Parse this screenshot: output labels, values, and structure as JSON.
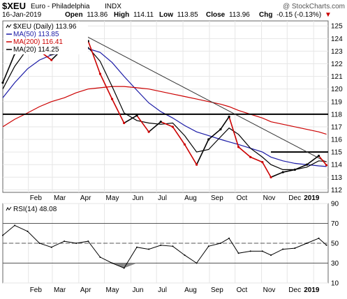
{
  "header": {
    "symbol": "$XEU",
    "name": "Euro - Philadelphia",
    "exchange": "INDX",
    "watermark": "@ StockCharts.com",
    "date": "16-Jan-2019",
    "quote": {
      "open_label": "Open",
      "open": "113.86",
      "high_label": "High",
      "high": "114.11",
      "low_label": "Low",
      "low": "113.85",
      "close_label": "Close",
      "close": "113.96",
      "chg_label": "Chg",
      "chg": "-0.15 (-0.13%)",
      "chg_arrow": "▼"
    }
  },
  "colors": {
    "price_up": "#000000",
    "price_down": "#cc0000",
    "ma50": "#1a1aa6",
    "ma200": "#cc0000",
    "ma20": "#000000",
    "rsi_line": "#000000",
    "grid": "#e6e6e6",
    "frame": "#666666"
  },
  "chart_data": [
    {
      "type": "line",
      "title": "$XEU (Daily) 113.96",
      "x": [
        "2018-01-02",
        "2018-01-16",
        "2018-01-31",
        "2018-02-14",
        "2018-02-28",
        "2018-03-15",
        "2018-03-29",
        "2018-04-12",
        "2018-04-26",
        "2018-05-10",
        "2018-05-24",
        "2018-06-08",
        "2018-06-22",
        "2018-07-06",
        "2018-07-20",
        "2018-08-03",
        "2018-08-17",
        "2018-08-31",
        "2018-09-14",
        "2018-09-24",
        "2018-10-05",
        "2018-10-19",
        "2018-11-02",
        "2018-11-12",
        "2018-11-26",
        "2018-12-10",
        "2018-12-24",
        "2019-01-07",
        "2019-01-16"
      ],
      "series": [
        {
          "name": "$XEU (Daily) 113.96",
          "values": [
            120.5,
            122.8,
            123.8,
            123.0,
            122.3,
            123.3,
            123.2,
            123.8,
            121.2,
            119.2,
            117.3,
            117.9,
            116.6,
            117.4,
            117.0,
            115.6,
            114.0,
            116.0,
            116.8,
            117.8,
            115.4,
            114.6,
            114.2,
            113.0,
            113.4,
            113.6,
            114.0,
            114.7,
            113.96
          ]
        },
        {
          "name": "MA(50) 113.85",
          "values": [
            119.3,
            120.5,
            121.6,
            122.3,
            122.7,
            122.9,
            123.1,
            123.2,
            122.9,
            122.1,
            121.0,
            119.9,
            118.9,
            118.2,
            117.7,
            117.1,
            116.6,
            116.3,
            116.0,
            115.8,
            115.6,
            115.3,
            115.0,
            114.6,
            114.3,
            114.1,
            114.0,
            113.9,
            113.85
          ]
        },
        {
          "name": "MA(200) 116.41",
          "values": [
            117.0,
            117.6,
            118.1,
            118.6,
            119.0,
            119.3,
            119.7,
            120.0,
            120.1,
            120.2,
            120.2,
            120.1,
            120.0,
            119.8,
            119.6,
            119.4,
            119.2,
            119.0,
            118.8,
            118.6,
            118.3,
            118.0,
            117.7,
            117.4,
            117.2,
            117.0,
            116.8,
            116.6,
            116.41
          ]
        },
        {
          "name": "MA(20) 114.25",
          "values": [
            120.0,
            121.8,
            123.2,
            123.0,
            122.7,
            123.0,
            123.3,
            123.3,
            122.2,
            120.2,
            118.1,
            117.5,
            117.3,
            117.2,
            117.3,
            116.3,
            115.0,
            115.2,
            116.2,
            116.9,
            116.4,
            115.3,
            114.6,
            114.0,
            113.6,
            113.6,
            113.8,
            114.3,
            114.25
          ]
        }
      ],
      "xlabel": "",
      "ylabel": "",
      "ylim": [
        111.8,
        125.4
      ],
      "yticks": [
        112,
        113,
        114,
        115,
        116,
        117,
        118,
        119,
        120,
        121,
        122,
        123,
        124,
        125
      ],
      "month_ticks": [
        "Feb",
        "Mar",
        "Apr",
        "May",
        "Jun",
        "Jul",
        "Aug",
        "Sep",
        "Oct",
        "Nov",
        "Dec",
        "2019"
      ],
      "horizontal_lines": [
        118.0,
        115.0
      ],
      "trendline": {
        "from": {
          "x": "2018-03-29",
          "y": 124.6
        },
        "to": {
          "x": "2019-01-16",
          "y": 114.2
        }
      },
      "grid": true,
      "legend": "top-left"
    },
    {
      "type": "line",
      "title": "RSI(14) 48.08",
      "x": [
        "2018-01-02",
        "2018-01-16",
        "2018-01-31",
        "2018-02-14",
        "2018-02-28",
        "2018-03-15",
        "2018-03-29",
        "2018-04-12",
        "2018-04-26",
        "2018-05-10",
        "2018-05-24",
        "2018-06-08",
        "2018-06-22",
        "2018-07-06",
        "2018-07-20",
        "2018-08-03",
        "2018-08-17",
        "2018-08-31",
        "2018-09-14",
        "2018-09-24",
        "2018-10-05",
        "2018-10-19",
        "2018-11-02",
        "2018-11-12",
        "2018-11-26",
        "2018-12-10",
        "2018-12-24",
        "2019-01-07",
        "2019-01-16"
      ],
      "series": [
        {
          "name": "RSI(14) 48.08",
          "values": [
            58,
            68,
            62,
            50,
            46,
            52,
            50,
            52,
            36,
            30,
            25,
            46,
            44,
            48,
            47,
            38,
            30,
            47,
            50,
            55,
            40,
            42,
            42,
            38,
            44,
            45,
            50,
            55,
            48.08
          ]
        }
      ],
      "ylim": [
        10,
        90
      ],
      "yticks": [
        10,
        30,
        50,
        70,
        90
      ],
      "reference_lines": [
        70,
        50,
        30
      ],
      "grid": true
    }
  ]
}
